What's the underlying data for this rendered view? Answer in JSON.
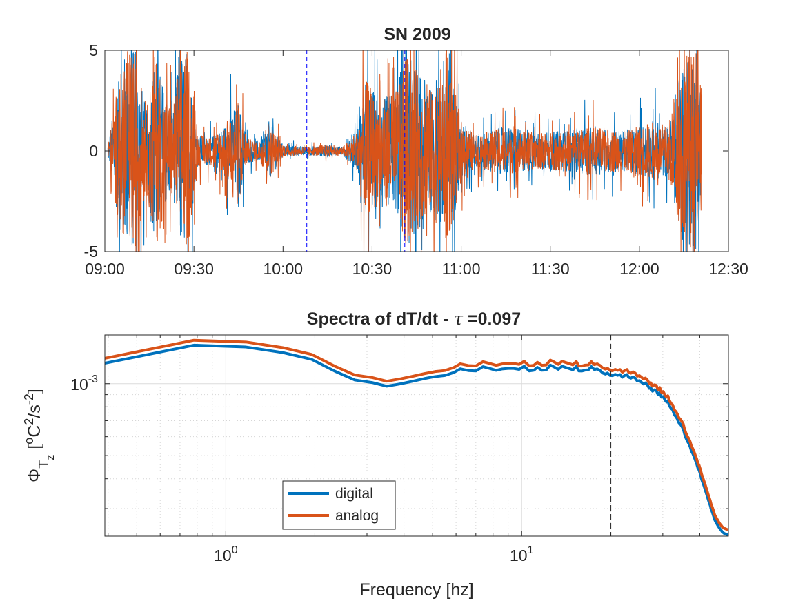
{
  "colors": {
    "digital": "#0072BD",
    "analog": "#D95319",
    "marker": "#0000FF",
    "cutoff": "#333333"
  },
  "chart_data": [
    {
      "type": "line",
      "title": "SN 2009",
      "xlabel": "",
      "ylabel": "",
      "xlim": [
        "09:00",
        "12:30"
      ],
      "ylim": [
        -5,
        5
      ],
      "x_ticks": [
        "09:00",
        "09:30",
        "10:00",
        "10:30",
        "11:00",
        "11:30",
        "12:00",
        "12:30"
      ],
      "y_ticks": [
        "-5",
        "0",
        "5"
      ],
      "grid": false,
      "data_span": [
        "09:01",
        "12:21"
      ],
      "vertical_markers": [
        "10:08",
        "10:41"
      ],
      "series": [
        {
          "color": "#0072BD",
          "amplitude_envelope": [
            {
              "t": "09:01",
              "amp": 0.3
            },
            {
              "t": "09:04",
              "amp": 3.0
            },
            {
              "t": "09:07",
              "amp": 5.0
            },
            {
              "t": "09:10",
              "amp": 5.0
            },
            {
              "t": "09:14",
              "amp": 2.0
            },
            {
              "t": "09:17",
              "amp": 5.0
            },
            {
              "t": "09:20",
              "amp": 3.0
            },
            {
              "t": "09:23",
              "amp": 2.0
            },
            {
              "t": "09:25",
              "amp": 5.0
            },
            {
              "t": "09:28",
              "amp": 5.0
            },
            {
              "t": "09:31",
              "amp": 0.8
            },
            {
              "t": "09:36",
              "amp": 0.7
            },
            {
              "t": "09:40",
              "amp": 1.2
            },
            {
              "t": "09:45",
              "amp": 2.5
            },
            {
              "t": "09:48",
              "amp": 0.6
            },
            {
              "t": "09:52",
              "amp": 0.5
            },
            {
              "t": "09:55",
              "amp": 1.5
            },
            {
              "t": "10:00",
              "amp": 0.3
            },
            {
              "t": "10:08",
              "amp": 0.2
            },
            {
              "t": "10:15",
              "amp": 0.3
            },
            {
              "t": "10:20",
              "amp": 0.2
            },
            {
              "t": "10:25",
              "amp": 1.0
            },
            {
              "t": "10:28",
              "amp": 3.5
            },
            {
              "t": "10:33",
              "amp": 2.5
            },
            {
              "t": "10:38",
              "amp": 3.0
            },
            {
              "t": "10:41",
              "amp": 5.0
            },
            {
              "t": "10:45",
              "amp": 4.0
            },
            {
              "t": "10:50",
              "amp": 3.0
            },
            {
              "t": "10:55",
              "amp": 5.0
            },
            {
              "t": "11:00",
              "amp": 1.5
            },
            {
              "t": "11:05",
              "amp": 0.8
            },
            {
              "t": "11:15",
              "amp": 1.2
            },
            {
              "t": "11:25",
              "amp": 0.9
            },
            {
              "t": "11:35",
              "amp": 1.0
            },
            {
              "t": "11:45",
              "amp": 1.2
            },
            {
              "t": "11:55",
              "amp": 1.0
            },
            {
              "t": "12:05",
              "amp": 1.5
            },
            {
              "t": "12:10",
              "amp": 1.2
            },
            {
              "t": "12:15",
              "amp": 5.0
            },
            {
              "t": "12:19",
              "amp": 5.0
            },
            {
              "t": "12:21",
              "amp": 3.0
            }
          ]
        },
        {
          "color": "#D95319",
          "amplitude_envelope": [
            {
              "t": "09:01",
              "amp": 0.3
            },
            {
              "t": "09:04",
              "amp": 3.0
            },
            {
              "t": "09:07",
              "amp": 5.0
            },
            {
              "t": "09:10",
              "amp": 5.0
            },
            {
              "t": "09:14",
              "amp": 2.0
            },
            {
              "t": "09:17",
              "amp": 5.0
            },
            {
              "t": "09:20",
              "amp": 3.0
            },
            {
              "t": "09:23",
              "amp": 2.0
            },
            {
              "t": "09:25",
              "amp": 5.0
            },
            {
              "t": "09:28",
              "amp": 5.0
            },
            {
              "t": "09:31",
              "amp": 0.8
            },
            {
              "t": "09:36",
              "amp": 0.7
            },
            {
              "t": "09:40",
              "amp": 1.2
            },
            {
              "t": "09:45",
              "amp": 2.5
            },
            {
              "t": "09:48",
              "amp": 0.6
            },
            {
              "t": "09:52",
              "amp": 0.5
            },
            {
              "t": "09:55",
              "amp": 1.5
            },
            {
              "t": "10:00",
              "amp": 0.3
            },
            {
              "t": "10:08",
              "amp": 0.2
            },
            {
              "t": "10:15",
              "amp": 0.3
            },
            {
              "t": "10:20",
              "amp": 0.2
            },
            {
              "t": "10:25",
              "amp": 1.0
            },
            {
              "t": "10:28",
              "amp": 3.5
            },
            {
              "t": "10:33",
              "amp": 2.5
            },
            {
              "t": "10:38",
              "amp": 3.0
            },
            {
              "t": "10:41",
              "amp": 5.0
            },
            {
              "t": "10:45",
              "amp": 4.0
            },
            {
              "t": "10:50",
              "amp": 3.0
            },
            {
              "t": "10:55",
              "amp": 5.0
            },
            {
              "t": "11:00",
              "amp": 1.5
            },
            {
              "t": "11:05",
              "amp": 0.8
            },
            {
              "t": "11:15",
              "amp": 1.2
            },
            {
              "t": "11:25",
              "amp": 0.9
            },
            {
              "t": "11:35",
              "amp": 1.0
            },
            {
              "t": "11:45",
              "amp": 1.2
            },
            {
              "t": "11:55",
              "amp": 1.0
            },
            {
              "t": "12:05",
              "amp": 1.5
            },
            {
              "t": "12:10",
              "amp": 1.2
            },
            {
              "t": "12:15",
              "amp": 5.0
            },
            {
              "t": "12:19",
              "amp": 5.0
            },
            {
              "t": "12:21",
              "amp": 3.0
            }
          ]
        }
      ]
    },
    {
      "type": "line",
      "title_prefix": "Spectra of dT/dt - ",
      "title_symbol": "τ",
      "title_suffix": " =0.097",
      "xlabel": "Frequency [hz]",
      "ylabel": {
        "phi": "Φ",
        "T": "T",
        "z": "z",
        "open": "[",
        "o": "o",
        "C": "C",
        "two": "2",
        "s": "/s",
        "neg2": "-2",
        "close": "]"
      },
      "x_scale": "log",
      "y_scale": "log",
      "xlim": [
        0.39,
        50
      ],
      "ylim": [
        0.00023,
        0.0016
      ],
      "x_ticks": [
        {
          "base": "10",
          "exp": "0",
          "value": 1
        },
        {
          "base": "10",
          "exp": "1",
          "value": 10
        }
      ],
      "y_ticks": [
        {
          "base": "10",
          "exp": "-3",
          "value": 0.001
        }
      ],
      "grid": true,
      "minor_grid": true,
      "cutoff_line": 20,
      "legend_position": "lower-left",
      "series": [
        {
          "name": "digital",
          "color": "#0072BD",
          "x": [
            0.39,
            0.78,
            1.17,
            1.56,
            1.95,
            2.34,
            2.73,
            3.12,
            3.5,
            3.9,
            4.3,
            4.7,
            5.1,
            5.5,
            5.9,
            6.2,
            6.6,
            7.0,
            7.4,
            7.8,
            8.2,
            8.6,
            9.0,
            9.4,
            9.8,
            10.2,
            10.6,
            11.0,
            11.3,
            11.7,
            12.1,
            12.5,
            12.9,
            13.3,
            13.7,
            14.1,
            14.5,
            14.9,
            15.3,
            15.6,
            16.0,
            16.4,
            16.8,
            17.2,
            17.6,
            18.0,
            18.4,
            18.8,
            19.2,
            19.5,
            19.9,
            20.3,
            20.7,
            21.1,
            21.5,
            21.9,
            22.3,
            22.7,
            23.0,
            23.4,
            23.8,
            24.2,
            24.6,
            25.0,
            25.4,
            25.8,
            26.2,
            26.6,
            27.0,
            27.3,
            27.7,
            28.1,
            28.5,
            28.9,
            29.3,
            29.7,
            30.1,
            30.5,
            30.9,
            31.2,
            31.6,
            32.0,
            32.4,
            32.8,
            33.2,
            33.6,
            34.0,
            34.4,
            34.8,
            35.2,
            35.5,
            35.9,
            36.3,
            36.7,
            37.1,
            37.5,
            37.9,
            38.3,
            38.7,
            39.1,
            39.4,
            39.8,
            40.2,
            40.6,
            41.0,
            41.4,
            41.8,
            42.2,
            42.6,
            43.0,
            43.4,
            43.7,
            44.1,
            44.5,
            44.9,
            45.3,
            45.7,
            46.1,
            46.5,
            46.9,
            47.3,
            47.6,
            48.0,
            48.4,
            48.8,
            49.2,
            49.6,
            50.0
          ],
          "y": [
            0.001218,
            0.001449,
            0.001424,
            0.001349,
            0.001264,
            0.001127,
            0.001036,
            0.001011,
            0.000976,
            0.000999,
            0.001025,
            0.001051,
            0.001071,
            0.001082,
            0.001114,
            0.001154,
            0.001135,
            0.001131,
            0.001178,
            0.001158,
            0.001137,
            0.001153,
            0.001158,
            0.001158,
            0.001148,
            0.001183,
            0.001131,
            0.001138,
            0.001171,
            0.001138,
            0.001141,
            0.001196,
            0.001173,
            0.001148,
            0.001184,
            0.001169,
            0.001156,
            0.001143,
            0.00118,
            0.001131,
            0.00113,
            0.00114,
            0.001142,
            0.001179,
            0.001146,
            0.001153,
            0.001136,
            0.001108,
            0.001097,
            0.001108,
            0.001082,
            0.00108,
            0.001094,
            0.001084,
            0.001092,
            0.001064,
            0.001082,
            0.001092,
            0.001064,
            0.001054,
            0.001068,
            0.001055,
            0.001025,
            0.00103,
            0.001014,
            0.000997,
            0.001007,
            0.000988,
            0.000956,
            0.000962,
            0.00093,
            0.000943,
            0.000938,
            0.0009,
            0.000918,
            0.000878,
            0.000884,
            0.000854,
            0.000838,
            0.000848,
            0.000808,
            0.000787,
            0.000777,
            0.000741,
            0.000729,
            0.000711,
            0.000686,
            0.000676,
            0.000662,
            0.000645,
            0.000618,
            0.000593,
            0.000575,
            0.000562,
            0.000545,
            0.000521,
            0.000509,
            0.000493,
            0.000476,
            0.000459,
            0.000444,
            0.000434,
            0.000417,
            0.000397,
            0.000384,
            0.000371,
            0.000357,
            0.000344,
            0.000331,
            0.000319,
            0.000309,
            0.000298,
            0.00029,
            0.00028,
            0.00027,
            0.000264,
            0.000259,
            0.000254,
            0.00025,
            0.000246,
            0.000243,
            0.00024,
            0.000238,
            0.000236,
            0.000235,
            0.000234,
            0.000233,
            0.000233
          ]
        },
        {
          "name": "analog",
          "color": "#D95319",
          "x": [
            0.39,
            0.78,
            1.17,
            1.56,
            1.95,
            2.34,
            2.73,
            3.12,
            3.5,
            3.9,
            4.3,
            4.7,
            5.1,
            5.5,
            5.9,
            6.2,
            6.6,
            7.0,
            7.4,
            7.8,
            8.2,
            8.6,
            9.0,
            9.4,
            9.8,
            10.2,
            10.6,
            11.0,
            11.3,
            11.7,
            12.1,
            12.5,
            12.9,
            13.3,
            13.7,
            14.1,
            14.5,
            14.9,
            15.3,
            15.6,
            16.0,
            16.4,
            16.8,
            17.2,
            17.6,
            18.0,
            18.4,
            18.8,
            19.2,
            19.5,
            19.9,
            20.3,
            20.7,
            21.1,
            21.5,
            21.9,
            22.3,
            22.7,
            23.0,
            23.4,
            23.8,
            24.2,
            24.6,
            25.0,
            25.4,
            25.8,
            26.2,
            26.6,
            27.0,
            27.3,
            27.7,
            28.1,
            28.5,
            28.9,
            29.3,
            29.7,
            30.1,
            30.5,
            30.9,
            31.2,
            31.6,
            32.0,
            32.4,
            32.8,
            33.2,
            33.6,
            34.0,
            34.4,
            34.8,
            35.2,
            35.5,
            35.9,
            36.3,
            36.7,
            37.1,
            37.5,
            37.9,
            38.3,
            38.7,
            39.1,
            39.4,
            39.8,
            40.2,
            40.6,
            41.0,
            41.4,
            41.8,
            42.2,
            42.6,
            43.0,
            43.4,
            43.7,
            44.1,
            44.5,
            44.9,
            45.3,
            45.7,
            46.1,
            46.5,
            46.9,
            47.3,
            47.6,
            48.0,
            48.4,
            48.8,
            49.2,
            49.6,
            50.0
          ],
          "y": [
            0.001277,
            0.00152,
            0.001494,
            0.001415,
            0.001326,
            0.001182,
            0.001087,
            0.001061,
            0.001024,
            0.001048,
            0.001075,
            0.001102,
            0.001124,
            0.001135,
            0.001169,
            0.001211,
            0.001191,
            0.001187,
            0.001236,
            0.001215,
            0.001193,
            0.00121,
            0.001215,
            0.001215,
            0.001204,
            0.001241,
            0.001187,
            0.001194,
            0.001229,
            0.001194,
            0.001197,
            0.001255,
            0.001231,
            0.001204,
            0.001242,
            0.001226,
            0.001213,
            0.001199,
            0.001238,
            0.001187,
            0.001186,
            0.001196,
            0.001198,
            0.001237,
            0.001202,
            0.00121,
            0.001192,
            0.001163,
            0.001151,
            0.001162,
            0.001135,
            0.001133,
            0.001148,
            0.001137,
            0.001146,
            0.001116,
            0.001135,
            0.001146,
            0.001116,
            0.001106,
            0.001121,
            0.001107,
            0.001075,
            0.001081,
            0.001064,
            0.001046,
            0.001056,
            0.001037,
            0.001003,
            0.001009,
            0.000976,
            0.000989,
            0.000984,
            0.000944,
            0.000963,
            0.000921,
            0.000927,
            0.000896,
            0.000879,
            0.00089,
            0.000848,
            0.000826,
            0.000815,
            0.000777,
            0.000765,
            0.000746,
            0.00072,
            0.000709,
            0.000695,
            0.000677,
            0.000648,
            0.000622,
            0.000603,
            0.00059,
            0.000572,
            0.000547,
            0.000534,
            0.000517,
            0.000499,
            0.000482,
            0.000466,
            0.000455,
            0.000437,
            0.000417,
            0.000403,
            0.000389,
            0.000375,
            0.000361,
            0.000347,
            0.000335,
            0.000324,
            0.000313,
            0.000304,
            0.000294,
            0.000283,
            0.000277,
            0.000272,
            0.000267,
            0.000262,
            0.000258,
            0.000255,
            0.000252,
            0.00025,
            0.000248,
            0.000247,
            0.000246,
            0.000245,
            0.000245
          ]
        }
      ]
    }
  ]
}
